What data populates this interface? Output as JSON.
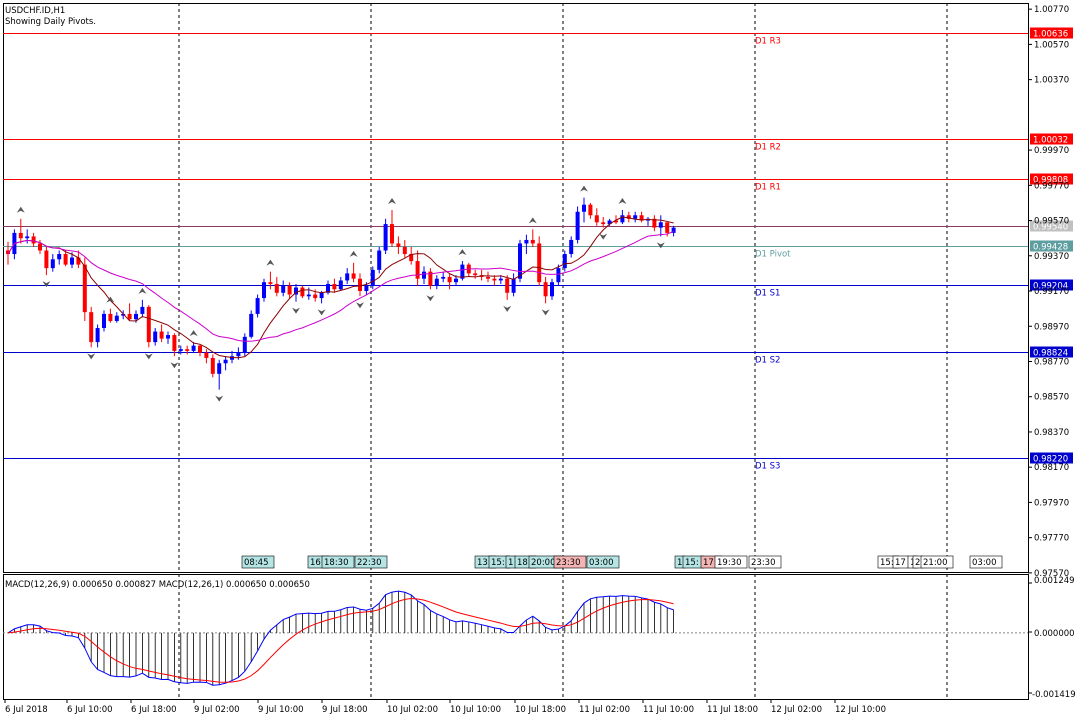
{
  "window": {
    "symbol_label": "USDCHF.ID,H1",
    "indicator_note": "Showing Daily Pivots."
  },
  "macd": {
    "label": "MACD(12,26,9) 0.000650 0.000827 MACD(12,26,1) 0.000650 0.000650",
    "axis_labels": [
      "0.001249",
      "0.000000",
      "-0.001419"
    ],
    "colors": {
      "histogram": "#000000",
      "macd_line": "#0000ff",
      "signal_line": "#ff0000"
    }
  },
  "colors": {
    "bull": "#0000ff",
    "bear": "#ff0000",
    "ma_fast": "#8b0000",
    "ma_slow": "#cc00cc",
    "resistance": "#ff0000",
    "support": "#0000cd",
    "pivot": "#5f9ea0"
  },
  "chart_data": {
    "type": "candlestick",
    "symbol": "USDCHF.ID",
    "timeframe": "H1",
    "ylim": [
      0.97575,
      1.00805
    ],
    "y_ticks": [
      "1.00770",
      "1.00570",
      "1.00370",
      "0.99970",
      "0.99770",
      "0.99570",
      "0.99370",
      "0.99170",
      "0.98970",
      "0.98770",
      "0.98570",
      "0.98370",
      "0.98170",
      "0.97970",
      "0.97770",
      "0.97570"
    ],
    "x_ticks": [
      "6 Jul 2018",
      "6 Jul 10:00",
      "6 Jul 18:00",
      "9 Jul 02:00",
      "9 Jul 10:00",
      "9 Jul 18:00",
      "10 Jul 02:00",
      "10 Jul 10:00",
      "10 Jul 18:00",
      "11 Jul 02:00",
      "11 Jul 10:00",
      "11 Jul 18:00",
      "12 Jul 02:00",
      "12 Jul 10:00"
    ],
    "pivots": [
      {
        "name": "D1 R3",
        "value": 1.00636,
        "label": "1.00636",
        "kind": "resistance"
      },
      {
        "name": "D1 R2",
        "value": 1.00032,
        "label": "1.00032",
        "kind": "resistance"
      },
      {
        "name": "D1 R1",
        "value": 0.99808,
        "label": "0.99808",
        "kind": "resistance"
      },
      {
        "name": "",
        "value": 0.9954,
        "label": "0.99540",
        "kind": "current"
      },
      {
        "name": "D1 Pivot",
        "value": 0.99428,
        "label": "0.99428",
        "kind": "pivot"
      },
      {
        "name": "D1 S1",
        "value": 0.99204,
        "label": "0.99204",
        "kind": "support"
      },
      {
        "name": "D1 S2",
        "value": 0.98824,
        "label": "0.98824",
        "kind": "support"
      },
      {
        "name": "D1 S3",
        "value": 0.9822,
        "label": "0.98220",
        "kind": "support"
      }
    ],
    "session_labels": [
      {
        "text": "08:45",
        "kind": "cyan"
      },
      {
        "text": "16:",
        "kind": "cyan"
      },
      {
        "text": "18:30",
        "kind": "cyan"
      },
      {
        "text": "22:30",
        "kind": "cyan"
      },
      {
        "text": "13:",
        "kind": "cyan"
      },
      {
        "text": "15:",
        "kind": "cyan"
      },
      {
        "text": "1",
        "kind": "cyan"
      },
      {
        "text": "18:",
        "kind": "cyan"
      },
      {
        "text": "20:00",
        "kind": "cyan"
      },
      {
        "text": "23:30",
        "kind": "pink"
      },
      {
        "text": "03:00",
        "kind": "cyan"
      },
      {
        "text": "1",
        "kind": "cyan"
      },
      {
        "text": "15:",
        "kind": "cyan"
      },
      {
        "text": "17:",
        "kind": "pink"
      },
      {
        "text": "19:30",
        "kind": "white"
      },
      {
        "text": "23:30",
        "kind": "white"
      },
      {
        "text": "15:",
        "kind": "white"
      },
      {
        "text": "17",
        "kind": "white"
      },
      {
        "text": "1",
        "kind": "white"
      },
      {
        "text": "2",
        "kind": "white"
      },
      {
        "text": "21:00",
        "kind": "white"
      },
      {
        "text": "03:00",
        "kind": "white"
      }
    ],
    "candles": [
      [
        0.994,
        0.9945,
        0.9932,
        0.9938
      ],
      [
        0.9938,
        0.9952,
        0.9935,
        0.995
      ],
      [
        0.995,
        0.9958,
        0.9944,
        0.9947
      ],
      [
        0.9947,
        0.9952,
        0.9944,
        0.9948
      ],
      [
        0.9948,
        0.995,
        0.9942,
        0.9944
      ],
      [
        0.9944,
        0.9946,
        0.9938,
        0.994
      ],
      [
        0.994,
        0.9942,
        0.9926,
        0.993
      ],
      [
        0.993,
        0.9938,
        0.9928,
        0.9935
      ],
      [
        0.9935,
        0.994,
        0.9932,
        0.9938
      ],
      [
        0.9938,
        0.994,
        0.9931,
        0.9932
      ],
      [
        0.9932,
        0.9939,
        0.993,
        0.9936
      ],
      [
        0.9936,
        0.994,
        0.993,
        0.9932
      ],
      [
        0.9932,
        0.9936,
        0.99,
        0.9905
      ],
      [
        0.9905,
        0.9908,
        0.9885,
        0.9888
      ],
      [
        0.9888,
        0.9898,
        0.9885,
        0.9896
      ],
      [
        0.9896,
        0.9906,
        0.9894,
        0.9904
      ],
      [
        0.9904,
        0.9907,
        0.9899,
        0.99
      ],
      [
        0.99,
        0.9905,
        0.9899,
        0.9903
      ],
      [
        0.9903,
        0.9906,
        0.9901,
        0.9904
      ],
      [
        0.9904,
        0.991,
        0.99,
        0.9901
      ],
      [
        0.9901,
        0.9906,
        0.9899,
        0.9904
      ],
      [
        0.9904,
        0.9912,
        0.9902,
        0.9908
      ],
      [
        0.9908,
        0.9909,
        0.9885,
        0.9888
      ],
      [
        0.9888,
        0.9896,
        0.9886,
        0.9894
      ],
      [
        0.9894,
        0.9898,
        0.9888,
        0.989
      ],
      [
        0.989,
        0.9894,
        0.9887,
        0.9892
      ],
      [
        0.9892,
        0.9893,
        0.988,
        0.9883
      ],
      [
        0.9883,
        0.9886,
        0.9881,
        0.9884
      ],
      [
        0.9884,
        0.9886,
        0.9881,
        0.9883
      ],
      [
        0.9883,
        0.9888,
        0.9882,
        0.9886
      ],
      [
        0.9886,
        0.9887,
        0.988,
        0.9882
      ],
      [
        0.9882,
        0.9884,
        0.9876,
        0.9879
      ],
      [
        0.9879,
        0.9881,
        0.9868,
        0.987
      ],
      [
        0.987,
        0.9878,
        0.9861,
        0.9876
      ],
      [
        0.9876,
        0.988,
        0.9872,
        0.9878
      ],
      [
        0.9878,
        0.9883,
        0.9876,
        0.988
      ],
      [
        0.988,
        0.9885,
        0.9878,
        0.9882
      ],
      [
        0.9882,
        0.9893,
        0.988,
        0.9891
      ],
      [
        0.9891,
        0.9906,
        0.989,
        0.9904
      ],
      [
        0.9904,
        0.9915,
        0.9902,
        0.9913
      ],
      [
        0.9913,
        0.9924,
        0.9911,
        0.9922
      ],
      [
        0.9922,
        0.9928,
        0.9918,
        0.9921
      ],
      [
        0.9921,
        0.9925,
        0.9914,
        0.9916
      ],
      [
        0.9916,
        0.9923,
        0.9914,
        0.992
      ],
      [
        0.992,
        0.9922,
        0.9913,
        0.9915
      ],
      [
        0.9915,
        0.9921,
        0.9911,
        0.9919
      ],
      [
        0.9919,
        0.992,
        0.9913,
        0.9914
      ],
      [
        0.9914,
        0.9919,
        0.9912,
        0.9915
      ],
      [
        0.9915,
        0.9918,
        0.9911,
        0.9913
      ],
      [
        0.9913,
        0.9917,
        0.991,
        0.9916
      ],
      [
        0.9916,
        0.9923,
        0.9915,
        0.9921
      ],
      [
        0.9921,
        0.9924,
        0.9916,
        0.9918
      ],
      [
        0.9918,
        0.9925,
        0.9917,
        0.9923
      ],
      [
        0.9923,
        0.993,
        0.9921,
        0.9927
      ],
      [
        0.9927,
        0.9933,
        0.9922,
        0.9924
      ],
      [
        0.9924,
        0.9927,
        0.9914,
        0.9917
      ],
      [
        0.9917,
        0.9922,
        0.9915,
        0.992
      ],
      [
        0.992,
        0.9931,
        0.9918,
        0.9929
      ],
      [
        0.9929,
        0.9942,
        0.9927,
        0.994
      ],
      [
        0.994,
        0.9958,
        0.9938,
        0.9955
      ],
      [
        0.9955,
        0.9963,
        0.9942,
        0.9944
      ],
      [
        0.9944,
        0.9948,
        0.9938,
        0.9942
      ],
      [
        0.9942,
        0.9946,
        0.9936,
        0.9938
      ],
      [
        0.9938,
        0.9942,
        0.9932,
        0.9934
      ],
      [
        0.9934,
        0.994,
        0.992,
        0.9924
      ],
      [
        0.9924,
        0.9931,
        0.9921,
        0.9928
      ],
      [
        0.9928,
        0.993,
        0.9918,
        0.992
      ],
      [
        0.992,
        0.9926,
        0.9918,
        0.9924
      ],
      [
        0.9924,
        0.9928,
        0.9922,
        0.9925
      ],
      [
        0.9925,
        0.9927,
        0.9918,
        0.9922
      ],
      [
        0.9922,
        0.9926,
        0.992,
        0.9924
      ],
      [
        0.9924,
        0.9934,
        0.9923,
        0.9932
      ],
      [
        0.9932,
        0.9933,
        0.9925,
        0.9927
      ],
      [
        0.9927,
        0.9929,
        0.9924,
        0.9926
      ],
      [
        0.9926,
        0.9929,
        0.9923,
        0.9925
      ],
      [
        0.9925,
        0.9928,
        0.9922,
        0.9924
      ],
      [
        0.9924,
        0.9926,
        0.992,
        0.9923
      ],
      [
        0.9923,
        0.9926,
        0.9921,
        0.9924
      ],
      [
        0.9924,
        0.9926,
        0.9912,
        0.9916
      ],
      [
        0.9916,
        0.9927,
        0.9914,
        0.9924
      ],
      [
        0.9924,
        0.9946,
        0.9922,
        0.9944
      ],
      [
        0.9944,
        0.9949,
        0.9938,
        0.9946
      ],
      [
        0.9946,
        0.9952,
        0.9942,
        0.9944
      ],
      [
        0.9944,
        0.9948,
        0.992,
        0.9922
      ],
      [
        0.9922,
        0.9925,
        0.991,
        0.9914
      ],
      [
        0.9914,
        0.9924,
        0.9912,
        0.9922
      ],
      [
        0.9922,
        0.9932,
        0.992,
        0.993
      ],
      [
        0.993,
        0.994,
        0.9928,
        0.9938
      ],
      [
        0.9938,
        0.9948,
        0.9936,
        0.9946
      ],
      [
        0.9946,
        0.9965,
        0.9944,
        0.9962
      ],
      [
        0.9962,
        0.997,
        0.9956,
        0.9966
      ],
      [
        0.9966,
        0.9967,
        0.9958,
        0.996
      ],
      [
        0.996,
        0.9964,
        0.9954,
        0.9956
      ],
      [
        0.9956,
        0.9959,
        0.9953,
        0.9955
      ],
      [
        0.9955,
        0.9958,
        0.9954,
        0.9957
      ],
      [
        0.9957,
        0.996,
        0.9955,
        0.9956
      ],
      [
        0.9956,
        0.9963,
        0.9955,
        0.996
      ],
      [
        0.996,
        0.9962,
        0.9956,
        0.9958
      ],
      [
        0.9958,
        0.9962,
        0.9956,
        0.996
      ],
      [
        0.996,
        0.9962,
        0.9956,
        0.9957
      ],
      [
        0.9957,
        0.9959,
        0.9954,
        0.9958
      ],
      [
        0.9958,
        0.996,
        0.9951,
        0.9953
      ],
      [
        0.9953,
        0.996,
        0.9948,
        0.9956
      ],
      [
        0.9956,
        0.9956,
        0.9948,
        0.995
      ],
      [
        0.995,
        0.9954,
        0.9948,
        0.9953
      ]
    ]
  }
}
